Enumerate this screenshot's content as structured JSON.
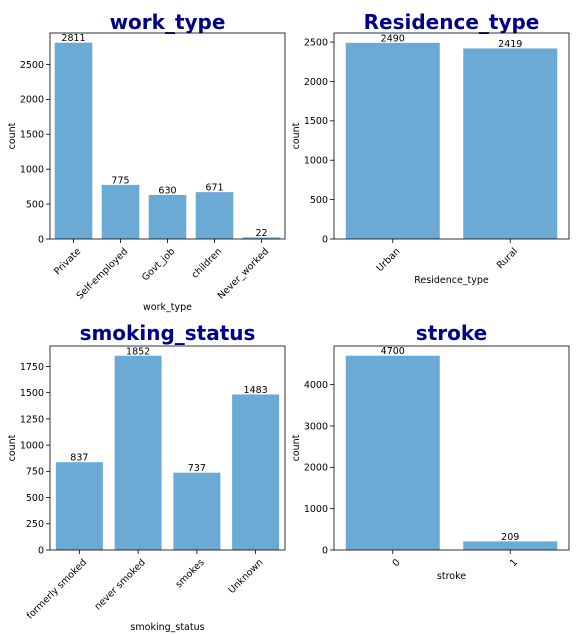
{
  "style": {
    "bar_color": "#6aaad4",
    "title_color": "#00008b"
  },
  "chart_data": [
    {
      "type": "bar",
      "title": "work_type",
      "xlabel": "work_type",
      "ylabel": "count",
      "categories": [
        "Private",
        "Self-employed",
        "Govt_job",
        "children",
        "Never_worked"
      ],
      "values": [
        2811,
        775,
        630,
        671,
        22
      ],
      "ylim": [
        0,
        2950
      ],
      "yticks": [
        0,
        500,
        1000,
        1500,
        2000,
        2500
      ],
      "x_tick_rotation": 45
    },
    {
      "type": "bar",
      "title": "Residence_type",
      "xlabel": "Residence_type",
      "ylabel": "count",
      "categories": [
        "Urban",
        "Rural"
      ],
      "values": [
        2490,
        2419
      ],
      "ylim": [
        0,
        2615
      ],
      "yticks": [
        0,
        500,
        1000,
        1500,
        2000,
        2500
      ],
      "x_tick_rotation": 45
    },
    {
      "type": "bar",
      "title": "smoking_status",
      "xlabel": "smoking_status",
      "ylabel": "count",
      "categories": [
        "formerly smoked",
        "never smoked",
        "smokes",
        "Unknown"
      ],
      "values": [
        837,
        1852,
        737,
        1483
      ],
      "ylim": [
        0,
        1945
      ],
      "yticks": [
        0,
        250,
        500,
        750,
        1000,
        1250,
        1500,
        1750
      ],
      "x_tick_rotation": 45
    },
    {
      "type": "bar",
      "title": "stroke",
      "xlabel": "stroke",
      "ylabel": "count",
      "categories": [
        "0",
        "1"
      ],
      "values": [
        4700,
        209
      ],
      "ylim": [
        0,
        4935
      ],
      "yticks": [
        0,
        1000,
        2000,
        3000,
        4000
      ],
      "x_tick_rotation": 45
    }
  ]
}
